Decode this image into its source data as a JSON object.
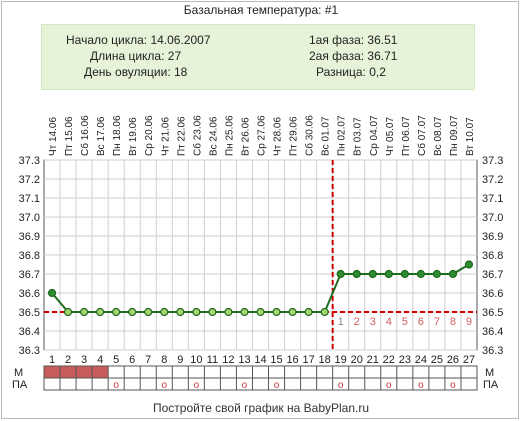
{
  "header": {
    "title": "Базальная температура: #1"
  },
  "info": {
    "cycle_start": "Начало цикла: 14.06.2007",
    "cycle_length": "Длина цикла: 27",
    "ovulation_day": "День овуляции: 18",
    "phase1": "1ая фаза: 36.51",
    "phase2": "2ая фаза: 36.71",
    "difference": "Разница: 0,2"
  },
  "footer": {
    "text": "Постройте свой график на BabyPlan.ru"
  },
  "rows": {
    "m_label": "М",
    "pa_label": "ПА",
    "pa_mark": "о"
  },
  "colors": {
    "line": "#1f6b1f",
    "dot": "#2e8b2e",
    "dot_core": "#a5d56f",
    "coverline": "#cc0000",
    "ovulation": "#cc0000",
    "m_fill": "#c85c5c",
    "grid": "#cfcfcf",
    "axis": "#555555"
  },
  "chart_data": {
    "type": "line",
    "ylim": [
      36.3,
      37.3
    ],
    "yticks": [
      "36.3",
      "36.4",
      "36.5",
      "36.6",
      "36.7",
      "36.8",
      "36.9",
      "37.0",
      "37.1",
      "37.2",
      "37.3"
    ],
    "days": [
      "1",
      "2",
      "3",
      "4",
      "5",
      "6",
      "7",
      "8",
      "9",
      "10",
      "11",
      "12",
      "13",
      "14",
      "15",
      "16",
      "17",
      "18",
      "19",
      "20",
      "21",
      "22",
      "23",
      "24",
      "25",
      "26",
      "27"
    ],
    "dates": [
      "Чт 14.06",
      "Пт 15.06",
      "Сб 16.06",
      "Вс 17.06",
      "Пн 18.06",
      "Вт 19.06",
      "Ср 20.06",
      "Чт 21.06",
      "Пт 22.06",
      "Сб 23.06",
      "Вс 24.06",
      "Пн 25.06",
      "Вт 26.06",
      "Ср 27.06",
      "Чт 28.06",
      "Пт 29.06",
      "Сб 30.06",
      "Вс 01.07",
      "Пн 02.07",
      "Вт 03.07",
      "Ср 04.07",
      "Чт 05.07",
      "Пт 06.07",
      "Сб 07.07",
      "Вс 08.07",
      "Пн 09.07",
      "Вт 10.07"
    ],
    "temperatures": [
      36.6,
      36.5,
      36.5,
      36.5,
      36.5,
      36.5,
      36.5,
      36.5,
      36.5,
      36.5,
      36.5,
      36.5,
      36.5,
      36.5,
      36.5,
      36.5,
      36.5,
      36.5,
      36.7,
      36.7,
      36.7,
      36.7,
      36.7,
      36.7,
      36.7,
      36.7,
      36.75
    ],
    "coverline": 36.5,
    "ovulation_day": 18,
    "post_ovulation_labels": [
      "1",
      "2",
      "3",
      "4",
      "5",
      "6",
      "7",
      "8",
      "9"
    ],
    "menstruation_days": [
      1,
      2,
      3,
      4
    ],
    "pa_days": [
      5,
      8,
      10,
      13,
      15,
      19,
      22,
      24,
      26
    ]
  }
}
